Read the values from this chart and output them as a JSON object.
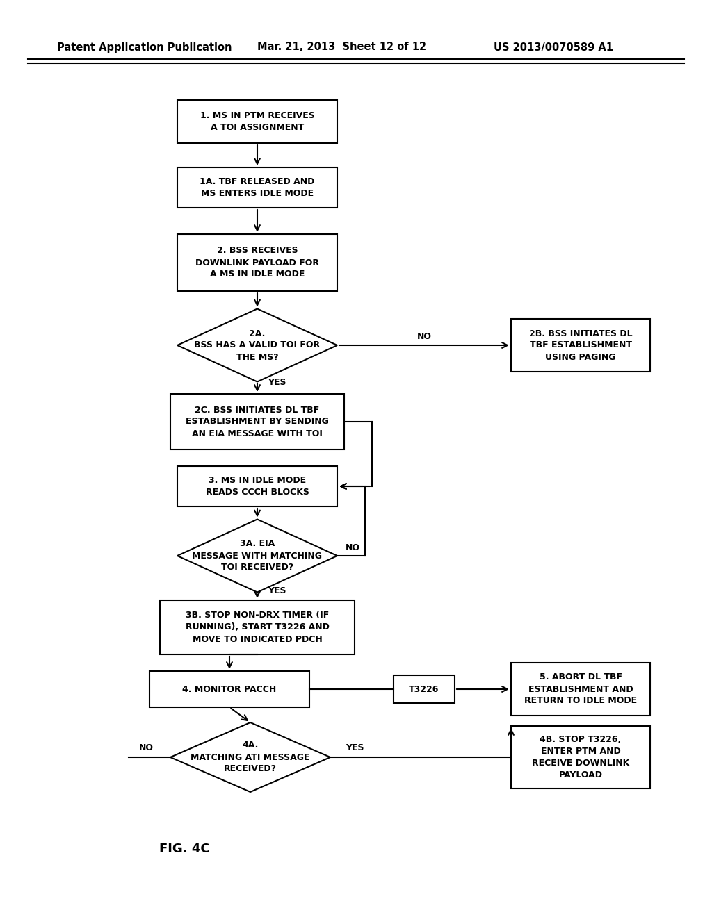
{
  "header1": "Patent Application Publication",
  "header2": "Mar. 21, 2013  Sheet 12 of 12",
  "header3": "US 2013/0070589 A1",
  "fig_label": "FIG. 4C",
  "bg_color": "#ffffff",
  "box_fc": "#ffffff",
  "box_ec": "#000000",
  "text_color": "#000000",
  "fs": 9.0,
  "fs_header": 10.5,
  "fs_fig": 13.0
}
